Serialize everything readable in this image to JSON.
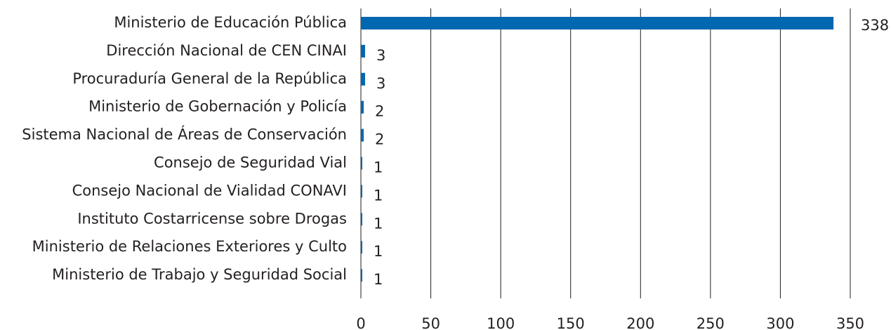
{
  "chart_data": {
    "type": "barh",
    "categories": [
      "Ministerio de Educación Pública",
      "Dirección Nacional de CEN CINAI",
      "Procuraduría General de la República",
      "Ministerio de Gobernación y Policía",
      "Sistema Nacional de Áreas de Conservación",
      "Consejo de Seguridad Vial",
      "Consejo Nacional de Vialidad CONAVI",
      "Instituto Costarricense sobre Drogas",
      "Ministerio de Relaciones Exteriores y Culto",
      "Ministerio de Trabajo y Seguridad Social"
    ],
    "values": [
      338,
      3,
      3,
      2,
      2,
      1,
      1,
      1,
      1,
      1
    ],
    "color": "#0067b1",
    "xlim": [
      0,
      350
    ],
    "xticks": [
      0,
      50,
      100,
      150,
      200,
      250,
      300,
      350
    ],
    "grid": true
  }
}
